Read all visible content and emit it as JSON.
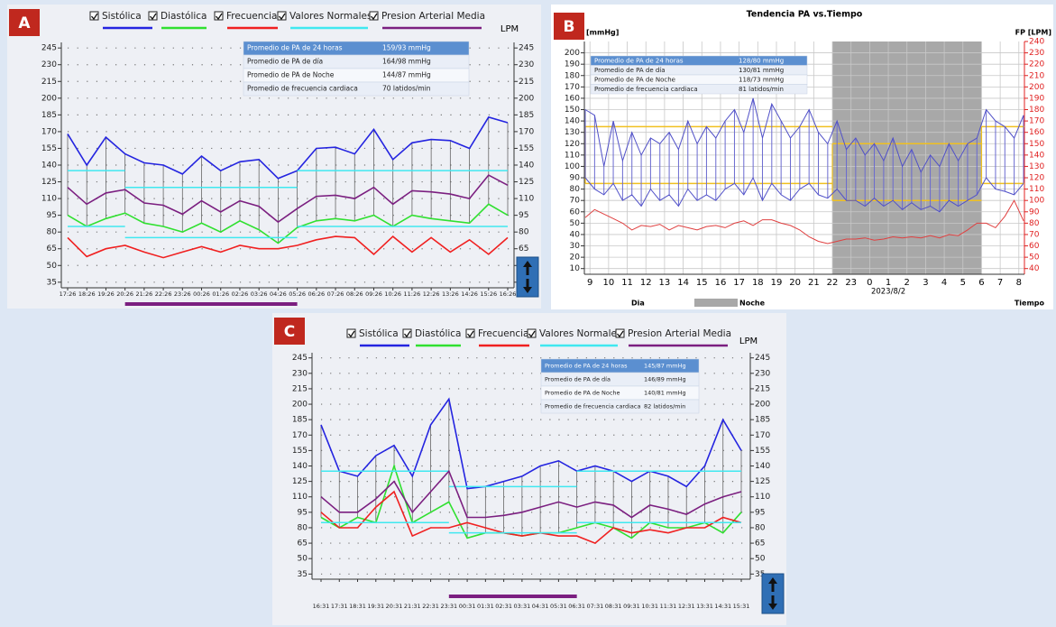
{
  "chart_data": [
    {
      "type": "line",
      "panel": "A",
      "legend": true,
      "categories": [
        "17:26",
        "18:26",
        "19:26",
        "20:26",
        "21:26",
        "22:26",
        "23:26",
        "00:26",
        "01:26",
        "02:26",
        "03:26",
        "04:26",
        "05:26",
        "06:26",
        "07:26",
        "08:26",
        "09:26",
        "10:26",
        "11:26",
        "12:26",
        "13:26",
        "14:26",
        "15:26",
        "16:26"
      ],
      "ylim": [
        30,
        250
      ],
      "yticks": [
        35,
        50,
        65,
        80,
        95,
        110,
        125,
        140,
        155,
        170,
        185,
        200,
        215,
        230,
        245
      ],
      "y2label": "LPM",
      "y2lim": [
        30,
        250
      ],
      "y2ticks": [
        35,
        50,
        65,
        80,
        95,
        110,
        125,
        140,
        155,
        170,
        185,
        200,
        215,
        230,
        245
      ],
      "series": [
        {
          "name": "Sistólica",
          "color": "#2424e0",
          "values": [
            168,
            140,
            165,
            150,
            142,
            140,
            132,
            148,
            135,
            143,
            145,
            128,
            135,
            155,
            156,
            150,
            172,
            145,
            160,
            163,
            162,
            155,
            183,
            178
          ]
        },
        {
          "name": "Diastólica",
          "color": "#30e030",
          "values": [
            95,
            85,
            92,
            97,
            88,
            85,
            80,
            88,
            80,
            90,
            82,
            70,
            84,
            90,
            92,
            90,
            95,
            85,
            95,
            92,
            90,
            88,
            105,
            95
          ]
        },
        {
          "name": "Frecuencia",
          "color": "#f02020",
          "axis": "y2",
          "values": [
            75,
            58,
            65,
            68,
            62,
            57,
            62,
            67,
            62,
            68,
            65,
            65,
            68,
            73,
            76,
            75,
            60,
            76,
            62,
            75,
            62,
            73,
            60,
            75
          ]
        },
        {
          "name": "Valores Normales",
          "color": "#40e8f0",
          "ranges": [
            {
              "from": "17:26",
              "to": "20:26",
              "upper": 135,
              "lower": 85
            },
            {
              "from": "20:26",
              "to": "05:26",
              "upper": 120,
              "lower": 75
            },
            {
              "from": "05:26",
              "to": "16:26",
              "upper": 135,
              "lower": 85
            }
          ]
        },
        {
          "name": "Presion Arterial Media",
          "color": "#7b1f80",
          "values": [
            120,
            105,
            115,
            118,
            106,
            104,
            96,
            108,
            98,
            108,
            103,
            89,
            101,
            112,
            113,
            110,
            120,
            105,
            117,
            116,
            114,
            110,
            131,
            122
          ]
        }
      ],
      "night": {
        "from": "20:26",
        "to": "05:26",
        "color": "#7b1f80"
      },
      "summary": [
        {
          "label": "Promedio de PA de 24 horas",
          "value": "159/93 mmHg"
        },
        {
          "label": "Promedio de PA de día",
          "value": "164/98 mmHg"
        },
        {
          "label": "Promedio de PA de Noche",
          "value": "144/87 mmHg"
        },
        {
          "label": "Promedio de frecuencia cardiaca",
          "value": "70 latidos/min"
        }
      ]
    },
    {
      "type": "line",
      "panel": "B",
      "title": "Tendencia PA vs.Tiempo",
      "ylabel": "[mmHg]",
      "y2label": "FP  [LPM]",
      "xlim": [
        8.7,
        32.3
      ],
      "xticks": [
        9,
        10,
        11,
        12,
        13,
        14,
        15,
        16,
        17,
        18,
        19,
        20,
        21,
        22,
        23,
        {
          "value": 24,
          "label": "0"
        },
        {
          "value": 25,
          "label": "1"
        },
        {
          "value": 26,
          "label": "2"
        },
        {
          "value": 27,
          "label": "3"
        },
        {
          "value": 28,
          "label": "4"
        },
        {
          "value": 29,
          "label": "5"
        },
        {
          "value": 30,
          "label": "6"
        },
        {
          "value": 31,
          "label": "7"
        },
        {
          "value": 32,
          "label": "8"
        }
      ],
      "date": "2023/8/2",
      "ylim": [
        5,
        210
      ],
      "yticks": [
        10,
        20,
        30,
        40,
        50,
        60,
        70,
        80,
        90,
        100,
        110,
        120,
        130,
        140,
        150,
        160,
        170,
        180,
        190,
        200
      ],
      "y2lim": [
        35,
        240
      ],
      "y2ticks": [
        40,
        50,
        60,
        70,
        80,
        90,
        100,
        110,
        120,
        130,
        140,
        150,
        160,
        170,
        180,
        190,
        200,
        210,
        220,
        230,
        240
      ],
      "y2color": "#e02020",
      "grid": true,
      "x": [
        8.75,
        9.25,
        9.75,
        10.25,
        10.75,
        11.25,
        11.75,
        12.25,
        12.75,
        13.25,
        13.75,
        14.25,
        14.75,
        15.25,
        15.75,
        16.25,
        16.75,
        17.25,
        17.75,
        18.25,
        18.75,
        19.25,
        19.75,
        20.25,
        20.75,
        21.25,
        21.75,
        22.25,
        22.75,
        23.25,
        23.75,
        24.25,
        24.75,
        25.25,
        25.75,
        26.25,
        26.75,
        27.25,
        27.75,
        28.25,
        28.75,
        29.25,
        29.75,
        30.25,
        30.75,
        31.25,
        31.75,
        32.25
      ],
      "series": [
        {
          "color": "#5050c8",
          "values": [
            150,
            145,
            100,
            140,
            105,
            130,
            110,
            125,
            120,
            130,
            115,
            140,
            120,
            135,
            125,
            140,
            150,
            130,
            160,
            125,
            155,
            140,
            125,
            135,
            150,
            130,
            120,
            140,
            115,
            125,
            110,
            120,
            105,
            125,
            100,
            115,
            95,
            110,
            100,
            120,
            105,
            120,
            125,
            150,
            140,
            135,
            125,
            145
          ]
        },
        {
          "color": "#5050c8",
          "values": [
            90,
            80,
            75,
            85,
            70,
            75,
            65,
            80,
            70,
            75,
            65,
            80,
            70,
            75,
            70,
            80,
            85,
            75,
            90,
            70,
            85,
            75,
            70,
            80,
            85,
            75,
            72,
            80,
            70,
            70,
            65,
            72,
            65,
            70,
            62,
            68,
            62,
            65,
            60,
            70,
            65,
            70,
            75,
            90,
            80,
            78,
            75,
            85
          ]
        },
        {
          "color": "#e04040",
          "axis": "y2",
          "values": [
            85,
            92,
            88,
            84,
            80,
            74,
            78,
            77,
            79,
            74,
            78,
            76,
            74,
            77,
            78,
            76,
            80,
            82,
            78,
            83,
            83,
            80,
            78,
            74,
            68,
            64,
            62,
            64,
            66,
            66,
            67,
            65,
            66,
            68,
            67,
            68,
            67,
            69,
            67,
            70,
            69,
            74,
            80,
            80,
            76,
            86,
            100,
            82
          ]
        }
      ],
      "normal_ranges": {
        "color": "#f0c020",
        "ranges": [
          {
            "from": 8.75,
            "to": 22,
            "upper": 135,
            "lower": 85
          },
          {
            "from": 22,
            "to": 30,
            "upper": 120,
            "lower": 70
          },
          {
            "from": 30,
            "to": 32.3,
            "upper": 135,
            "lower": 85
          }
        ]
      },
      "night": {
        "from": 22,
        "to": 30,
        "color": "#a8a8a8"
      },
      "day_label": "Dia",
      "night_label": "Noche",
      "x_label": "Tiempo",
      "summary": [
        {
          "label": "Promedio de PA de 24 horas",
          "value": "128/80 mmHg"
        },
        {
          "label": "Promedio de PA de día",
          "value": "130/81 mmHg"
        },
        {
          "label": "Promedio de PA de Noche",
          "value": "118/73 mmHg"
        },
        {
          "label": "Promedio de frecuencia cardiaca",
          "value": "81 latidos/min"
        }
      ]
    },
    {
      "type": "line",
      "panel": "C",
      "legend": true,
      "categories": [
        "16:31",
        "17:31",
        "18:31",
        "19:31",
        "20:31",
        "21:31",
        "22:31",
        "23:31",
        "00:31",
        "01:31",
        "02:31",
        "03:31",
        "04:31",
        "05:31",
        "06:31",
        "07:31",
        "08:31",
        "09:31",
        "10:31",
        "11:31",
        "12:31",
        "13:31",
        "14:31",
        "15:31"
      ],
      "ylim": [
        30,
        250
      ],
      "yticks": [
        35,
        50,
        65,
        80,
        95,
        110,
        125,
        140,
        155,
        170,
        185,
        200,
        215,
        230,
        245
      ],
      "y2label": "LPM",
      "y2lim": [
        30,
        250
      ],
      "y2ticks": [
        35,
        50,
        65,
        80,
        95,
        110,
        125,
        140,
        155,
        170,
        185,
        200,
        215,
        230,
        245
      ],
      "series": [
        {
          "name": "Sistólica",
          "color": "#2424e0",
          "values": [
            180,
            135,
            130,
            150,
            160,
            130,
            180,
            205,
            118,
            120,
            125,
            130,
            140,
            145,
            135,
            140,
            135,
            125,
            135,
            130,
            120,
            140,
            185,
            155
          ]
        },
        {
          "name": "Diastólica",
          "color": "#30e030",
          "values": [
            90,
            80,
            90,
            85,
            140,
            85,
            95,
            105,
            70,
            75,
            75,
            72,
            75,
            75,
            80,
            85,
            80,
            70,
            85,
            80,
            80,
            85,
            75,
            95
          ]
        },
        {
          "name": "Frecuencia",
          "color": "#f02020",
          "axis": "y2",
          "values": [
            95,
            80,
            80,
            100,
            115,
            72,
            80,
            80,
            85,
            80,
            75,
            72,
            75,
            72,
            72,
            65,
            80,
            75,
            78,
            75,
            80,
            80,
            90,
            85
          ]
        },
        {
          "name": "Valores Normales",
          "color": "#40e8f0",
          "ranges": [
            {
              "from": "16:31",
              "to": "23:31",
              "upper": 135,
              "lower": 85
            },
            {
              "from": "23:31",
              "to": "06:31",
              "upper": 120,
              "lower": 75
            },
            {
              "from": "06:31",
              "to": "15:31",
              "upper": 135,
              "lower": 85
            }
          ]
        },
        {
          "name": "Presion Arterial Media",
          "color": "#7b1f80",
          "values": [
            110,
            95,
            95,
            108,
            125,
            95,
            115,
            135,
            90,
            90,
            92,
            95,
            100,
            105,
            100,
            105,
            102,
            90,
            102,
            98,
            93,
            103,
            110,
            115
          ]
        }
      ],
      "night": {
        "from": "23:31",
        "to": "06:31",
        "color": "#7b1f80"
      },
      "summary": [
        {
          "label": "Promedio de PA de 24 horas",
          "value": "145/87 mmHg"
        },
        {
          "label": "Promedio de PA de día",
          "value": "146/89 mmHg"
        },
        {
          "label": "Promedio de PA de Noche",
          "value": "140/81 mmHg"
        },
        {
          "label": "Promedio de frecuencia cardiaca",
          "value": "82 latidos/min"
        }
      ]
    }
  ]
}
